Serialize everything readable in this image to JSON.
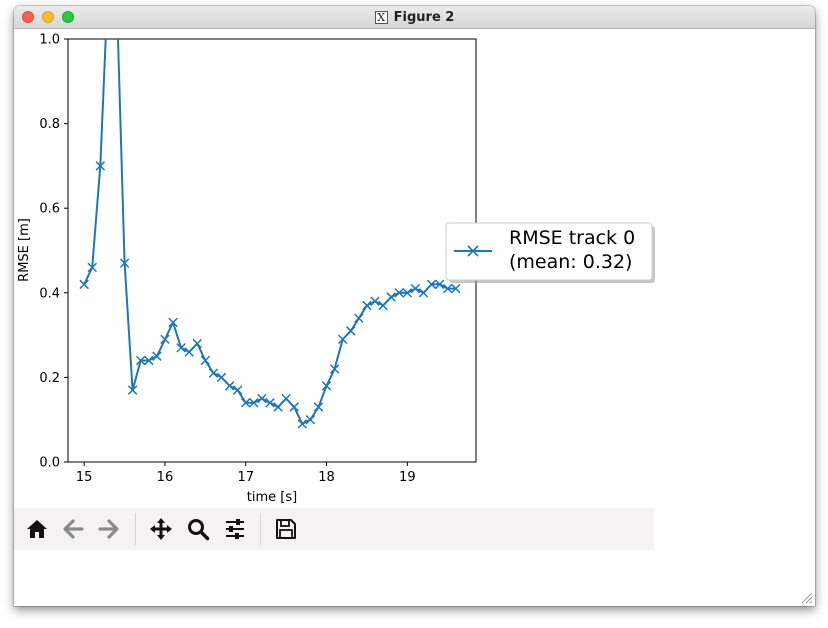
{
  "window": {
    "title": "Figure 2",
    "x_badge": "X"
  },
  "toolbar": {
    "buttons": [
      "home-icon",
      "back-arrow-icon",
      "forward-arrow-icon",
      "pan-move-icon",
      "zoom-magnifier-icon",
      "configure-subplots-icon",
      "save-floppy-icon"
    ]
  },
  "chart_data": {
    "type": "line",
    "marker": "x",
    "xlabel": "time [s]",
    "ylabel": "RMSE [m]",
    "xlim": [
      14.8,
      19.85
    ],
    "ylim": [
      0.0,
      1.0
    ],
    "x_ticks": [
      "15",
      "16",
      "17",
      "18",
      "19"
    ],
    "y_ticks": [
      "0.0",
      "0.2",
      "0.4",
      "0.6",
      "0.8",
      "1.0"
    ],
    "legend": {
      "placement": "right outside axes",
      "lines": [
        "RMSE track 0",
        "(mean: 0.32)"
      ]
    },
    "color": "#1f77b4",
    "series": [
      {
        "name": "RMSE track 0",
        "x": [
          15.0,
          15.1,
          15.2,
          15.3,
          15.4,
          15.5,
          15.6,
          15.7,
          15.8,
          15.9,
          16.0,
          16.1,
          16.2,
          16.3,
          16.4,
          16.5,
          16.6,
          16.7,
          16.8,
          16.9,
          17.0,
          17.1,
          17.2,
          17.3,
          17.4,
          17.5,
          17.6,
          17.7,
          17.8,
          17.9,
          18.0,
          18.1,
          18.2,
          18.3,
          18.4,
          18.5,
          18.6,
          18.7,
          18.8,
          18.9,
          19.0,
          19.1,
          19.2,
          19.3,
          19.4,
          19.5,
          19.6
        ],
        "y": [
          0.42,
          0.46,
          0.7,
          1.15,
          1.12,
          0.47,
          0.17,
          0.24,
          0.24,
          0.25,
          0.29,
          0.33,
          0.27,
          0.26,
          0.28,
          0.24,
          0.21,
          0.2,
          0.18,
          0.17,
          0.14,
          0.14,
          0.15,
          0.14,
          0.13,
          0.15,
          0.13,
          0.09,
          0.1,
          0.13,
          0.18,
          0.22,
          0.29,
          0.31,
          0.34,
          0.37,
          0.38,
          0.37,
          0.39,
          0.4,
          0.4,
          0.41,
          0.4,
          0.42,
          0.42,
          0.41,
          0.41
        ]
      }
    ]
  }
}
